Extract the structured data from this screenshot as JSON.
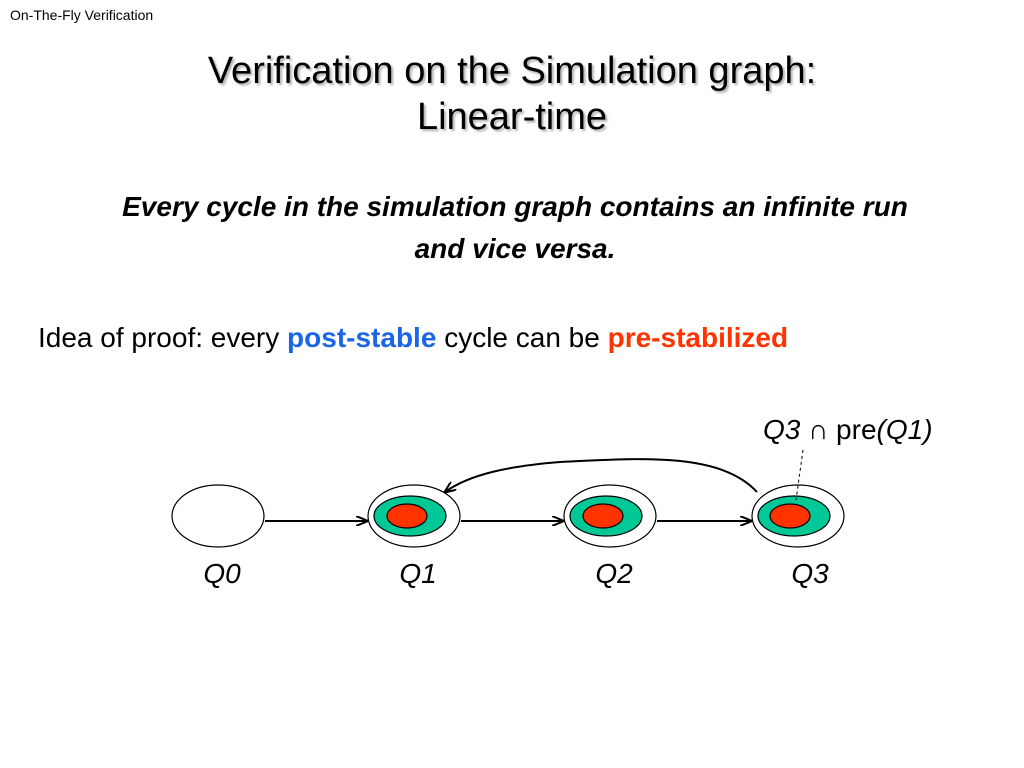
{
  "header": "On-The-Fly Verification",
  "title": [
    "Verification on the Simulation graph:",
    "Linear-time"
  ],
  "statement": [
    "Every cycle in the simulation graph contains an infinite run",
    "and vice versa."
  ],
  "idea": {
    "prefix": "Idea of proof: every",
    "highlight1": "post-stable",
    "middle": "cycle can be",
    "highlight2": "pre-stabilized"
  },
  "annotation": {
    "q": "Q3",
    "symbol": "∩",
    "pre": "pre",
    "arg": "(Q1)"
  },
  "states": [
    "Q0",
    "Q1",
    "Q2",
    "Q3"
  ],
  "colors": {
    "accent_blue": "#1a66e6",
    "accent_red": "#ff3300",
    "zone_green": "#00c896",
    "region_red": "#ff3300"
  }
}
